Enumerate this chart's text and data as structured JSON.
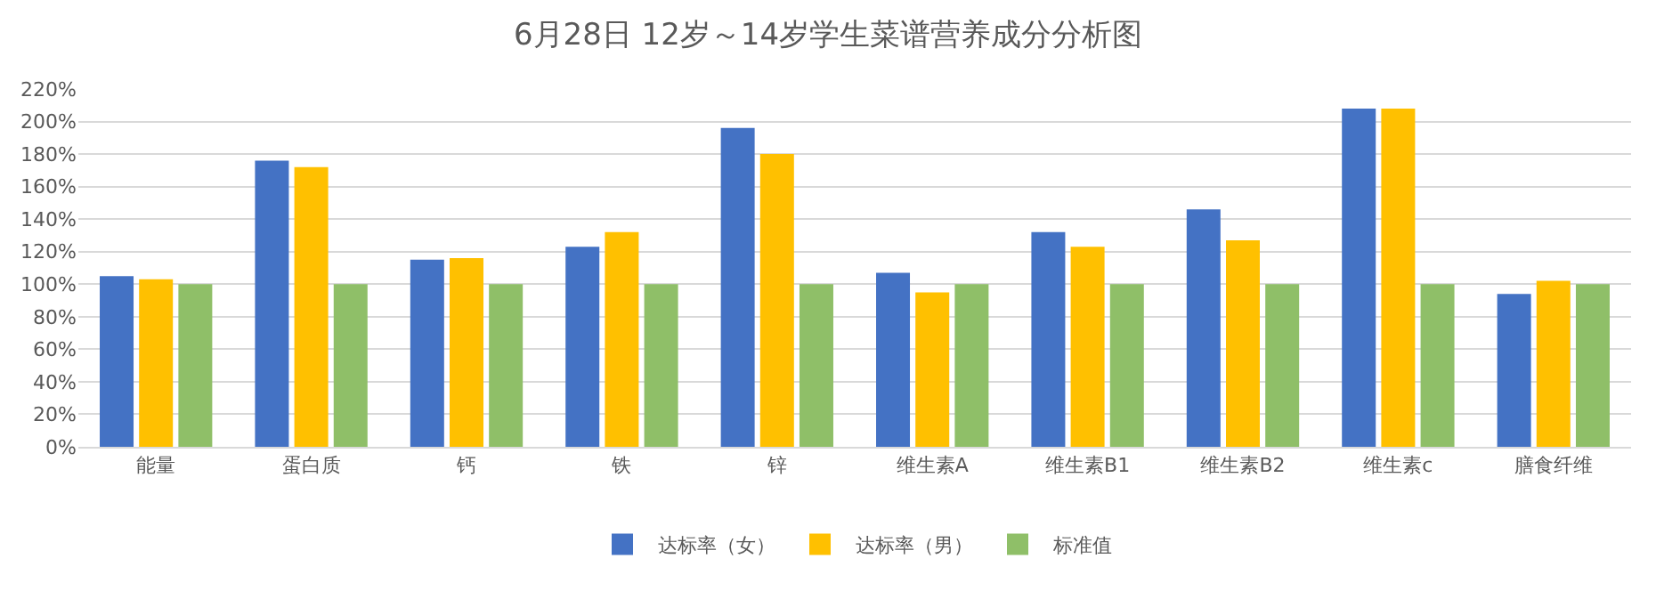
{
  "chart_data": {
    "type": "bar",
    "title": "6月28日 12岁～14岁学生菜谱营养成分分析图",
    "categories": [
      "能量",
      "蛋白质",
      "钙",
      "铁",
      "锌",
      "维生素A",
      "维生素B1",
      "维生素B2",
      "维生素c",
      "膳食纤维"
    ],
    "series": [
      {
        "name": "达标率（女）",
        "color": "#4472c4",
        "values": [
          105,
          176,
          115,
          123,
          196,
          107,
          132,
          146,
          208,
          94
        ]
      },
      {
        "name": "达标率（男）",
        "color": "#ffc000",
        "values": [
          103,
          172,
          116,
          132,
          180,
          95,
          123,
          127,
          208,
          102
        ]
      },
      {
        "name": "标准值",
        "color": "#8fbf68",
        "values": [
          100,
          100,
          100,
          100,
          100,
          100,
          100,
          100,
          100,
          100
        ]
      }
    ],
    "ylim": [
      0,
      220
    ],
    "yticks": [
      {
        "value": 0,
        "label": "0%"
      },
      {
        "value": 20,
        "label": "20%"
      },
      {
        "value": 40,
        "label": "40%"
      },
      {
        "value": 60,
        "label": "60%"
      },
      {
        "value": 80,
        "label": "80%"
      },
      {
        "value": 100,
        "label": "100%"
      },
      {
        "value": 120,
        "label": "120%"
      },
      {
        "value": 140,
        "label": "140%"
      },
      {
        "value": 160,
        "label": "160%"
      },
      {
        "value": 180,
        "label": "180%"
      },
      {
        "value": 200,
        "label": "200%"
      },
      {
        "value": 220,
        "label": "220%"
      }
    ],
    "grid": "y",
    "legend": "bottom"
  }
}
